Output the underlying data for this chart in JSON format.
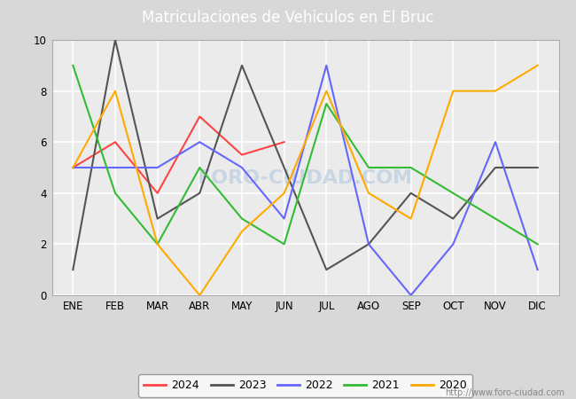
{
  "title": "Matriculaciones de Vehiculos en El Bruc",
  "title_color": "white",
  "title_bg_color": "#4f81bd",
  "months": [
    "ENE",
    "FEB",
    "MAR",
    "ABR",
    "MAY",
    "JUN",
    "JUL",
    "AGO",
    "SEP",
    "OCT",
    "NOV",
    "DIC"
  ],
  "series": {
    "2024": {
      "color": "#FF4444",
      "data": [
        5,
        6,
        4,
        7,
        5.5,
        6,
        null,
        null,
        null,
        null,
        null,
        null
      ]
    },
    "2023": {
      "color": "#555555",
      "data": [
        1,
        10,
        3,
        4,
        9,
        5,
        1,
        2,
        4,
        3,
        5,
        5
      ]
    },
    "2022": {
      "color": "#6666FF",
      "data": [
        5,
        5,
        5,
        6,
        5,
        3,
        9,
        2,
        0,
        2,
        6,
        1
      ]
    },
    "2021": {
      "color": "#33BB33",
      "data": [
        9,
        4,
        2,
        5,
        3,
        2,
        7.5,
        5,
        5,
        4,
        3,
        2
      ]
    },
    "2020": {
      "color": "#FFAA00",
      "data": [
        5,
        8,
        2,
        0,
        2.5,
        4,
        8,
        4,
        3,
        8,
        8,
        9
      ]
    }
  },
  "ylim": [
    0,
    10
  ],
  "yticks": [
    0,
    2,
    4,
    6,
    8,
    10
  ],
  "bg_color": "#D8D8D8",
  "plot_bg_color": "#EBEBEB",
  "grid_color": "white",
  "watermark_plot": "FORO-CIUDAD.COM",
  "watermark_url": "http://www.foro-ciudad.com",
  "series_order": [
    "2024",
    "2023",
    "2022",
    "2021",
    "2020"
  ]
}
